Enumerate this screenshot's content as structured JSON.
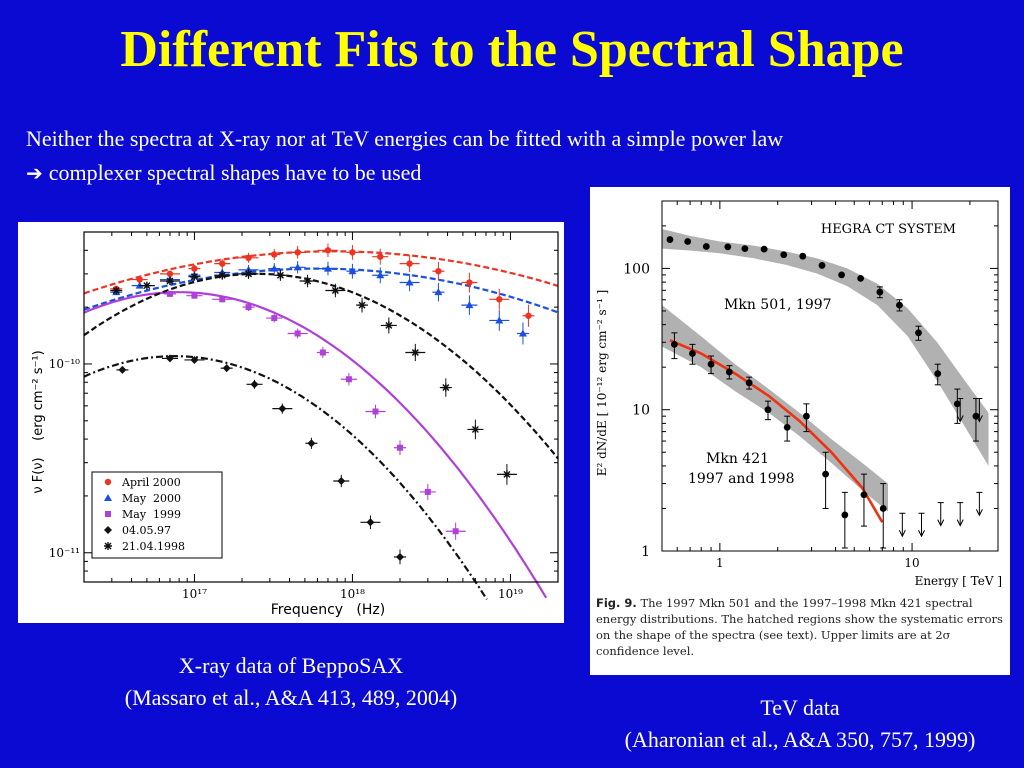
{
  "slide": {
    "title": "Different Fits to the Spectral Shape",
    "intro_line1": "Neither the spectra at X-ray nor at TeV energies can be fitted with a simple power law",
    "intro_arrow": "➔",
    "intro_line2": "complexer spectral shapes have to be used",
    "caption_left_1": "X-ray data of BeppoSAX",
    "caption_left_2": "(Massaro et al., A&A 413, 489, 2004)",
    "caption_right_1": "TeV data",
    "caption_right_2": "(Aharonian et al., A&A 350, 757, 1999)",
    "fig_label": "Fig. 9.",
    "fig_caption": "The 1997 Mkn 501 and the 1997–1998 Mkn 421 spectral energy distributions. The hatched regions show the systematic errors on the shape of the spectra (see text). Upper limits are at 2σ confidence level."
  },
  "chart_data": [
    {
      "type": "scatter",
      "xlabel": "Frequency   (Hz)",
      "ylabel": "ν F(ν)    (erg cm⁻² s⁻¹)",
      "x_scale": "log",
      "y_scale": "log",
      "xlim": [
        2e+16,
        2e+19
      ],
      "ylim": [
        7e-12,
        5e-10
      ],
      "x_tick_labels": [
        "10¹⁷",
        "10¹⁸",
        "10¹⁹"
      ],
      "y_tick_labels": [
        "10⁻¹⁰",
        "10⁻¹¹"
      ],
      "legend_position": "bottom-left",
      "series": [
        {
          "name": "April 2000",
          "marker": "circle",
          "color": "#ee3322",
          "fit": "dashed",
          "fit_params": {
            "peak_hz": 7.5e+17,
            "peak_flux": 3.95e-10,
            "b": 0.09
          },
          "x": [
            3.2e+16,
            4.5e+16,
            7e+16,
            1e+17,
            1.5e+17,
            2.2e+17,
            3.2e+17,
            4.5e+17,
            7e+17,
            1e+18,
            1.5e+18,
            2.3e+18,
            3.5e+18,
            5.5e+18,
            8.5e+18,
            1.3e+19
          ],
          "y": [
            2.5e-10,
            2.8e-10,
            3e-10,
            3.2e-10,
            3.4e-10,
            3.65e-10,
            3.8e-10,
            3.9e-10,
            4e-10,
            3.9e-10,
            3.7e-10,
            3.4e-10,
            3.1e-10,
            2.7e-10,
            2.2e-10,
            1.8e-10
          ]
        },
        {
          "name": "May  2000",
          "marker": "triangle",
          "color": "#1a4fe0",
          "fit": "dashed",
          "fit_params": {
            "peak_hz": 6e+17,
            "peak_flux": 3.2e-10,
            "b": 0.1
          },
          "x": [
            3.2e+16,
            4.5e+16,
            7e+16,
            1e+17,
            1.5e+17,
            2.2e+17,
            3.2e+17,
            4.5e+17,
            7e+17,
            1e+18,
            1.5e+18,
            2.3e+18,
            3.5e+18,
            5.5e+18,
            8.5e+18,
            1.2e+19
          ],
          "y": [
            2.4e-10,
            2.6e-10,
            2.8e-10,
            2.95e-10,
            3.05e-10,
            3.15e-10,
            3.2e-10,
            3.25e-10,
            3.2e-10,
            3.1e-10,
            2.95e-10,
            2.7e-10,
            2.4e-10,
            2.05e-10,
            1.7e-10,
            1.45e-10
          ]
        },
        {
          "name": "May  1999",
          "marker": "square",
          "color": "#b040d8",
          "fit": "solid",
          "fit_params": {
            "peak_hz": 8e+16,
            "peak_flux": 2.4e-10,
            "b": 0.3
          },
          "x": [
            7e+16,
            1e+17,
            1.5e+17,
            2.2e+17,
            3.2e+17,
            4.5e+17,
            6.5e+17,
            9.5e+17,
            1.4e+18,
            2e+18,
            3e+18,
            4.5e+18
          ],
          "y": [
            2.35e-10,
            2.3e-10,
            2.2e-10,
            2e-10,
            1.75e-10,
            1.45e-10,
            1.15e-10,
            8.3e-11,
            5.6e-11,
            3.6e-11,
            2.1e-11,
            1.3e-11
          ]
        },
        {
          "name": "04.05.97",
          "marker": "diamond",
          "color": "#111111",
          "fit": "dashdot",
          "fit_params": {
            "peak_hz": 7.5e+16,
            "peak_flux": 1.1e-10,
            "b": 0.33
          },
          "x": [
            3.5e+16,
            7e+16,
            1e+17,
            1.6e+17,
            2.4e+17,
            3.6e+17,
            5.5e+17,
            8.5e+17,
            1.3e+18,
            2e+18
          ],
          "y": [
            9.3e-11,
            1.07e-10,
            1.05e-10,
            9.5e-11,
            7.8e-11,
            5.8e-11,
            3.8e-11,
            2.4e-11,
            1.45e-11,
            9.5e-12
          ]
        },
        {
          "name": "21.04.1998",
          "marker": "star",
          "color": "#111111",
          "fit": "dashed",
          "fit_params": {
            "peak_hz": 2.5e+17,
            "peak_flux": 3e-10,
            "b": 0.27
          },
          "x": [
            3.2e+16,
            5e+16,
            7e+16,
            1e+17,
            1.5e+17,
            2.2e+17,
            3.5e+17,
            5.2e+17,
            7.8e+17,
            1.15e+18,
            1.7e+18,
            2.5e+18,
            3.9e+18,
            6e+18,
            9.5e+18
          ],
          "y": [
            2.45e-10,
            2.6e-10,
            2.75e-10,
            2.9e-10,
            2.95e-10,
            3e-10,
            2.95e-10,
            2.75e-10,
            2.45e-10,
            2.05e-10,
            1.6e-10,
            1.15e-10,
            7.5e-11,
            4.5e-11,
            2.6e-11
          ]
        }
      ]
    },
    {
      "type": "scatter",
      "title": "HEGRA CT SYSTEM",
      "xlabel": "Energy [ TeV ]",
      "ylabel": "E² dN/dE [ 10⁻¹² erg cm⁻² s⁻¹ ]",
      "x_scale": "log",
      "y_scale": "log",
      "xlim": [
        0.5,
        28
      ],
      "ylim": [
        1,
        300
      ],
      "x_tick_labels": [
        "1",
        "10"
      ],
      "y_tick_labels": [
        "100",
        "10",
        "1"
      ],
      "annotations": [
        "Mkn 501, 1997",
        "Mkn 421",
        "1997 and 1998"
      ],
      "bands": [
        {
          "lower": [
            [
              0.5,
              138
            ],
            [
              0.7,
              134
            ],
            [
              1.0,
              128
            ],
            [
              1.5,
              118
            ],
            [
              2.2,
              106
            ],
            [
              3.2,
              92
            ],
            [
              4.6,
              75
            ],
            [
              6.6,
              55
            ],
            [
              9.5,
              33
            ],
            [
              13.5,
              16
            ],
            [
              19.5,
              7
            ],
            [
              25,
              4
            ]
          ],
          "upper": [
            [
              0.5,
              190
            ],
            [
              0.7,
              170
            ],
            [
              1.0,
              155
            ],
            [
              1.5,
              145
            ],
            [
              2.2,
              132
            ],
            [
              3.2,
              118
            ],
            [
              4.6,
              100
            ],
            [
              6.6,
              78
            ],
            [
              9.5,
              52
            ],
            [
              13.5,
              30
            ],
            [
              19.5,
              15
            ],
            [
              25,
              9.5
            ]
          ]
        },
        {
          "lower": [
            [
              0.5,
              28
            ],
            [
              0.8,
              20
            ],
            [
              1.2,
              13.5
            ],
            [
              1.8,
              9.5
            ],
            [
              2.6,
              6.5
            ],
            [
              3.8,
              4.2
            ],
            [
              5.5,
              2.7
            ],
            [
              7.5,
              1.9
            ]
          ],
          "upper": [
            [
              0.5,
              55
            ],
            [
              0.8,
              33
            ],
            [
              1.2,
              21
            ],
            [
              1.8,
              14
            ],
            [
              2.6,
              9.5
            ],
            [
              3.8,
              6.2
            ],
            [
              5.5,
              4.2
            ],
            [
              7.5,
              3.0
            ]
          ]
        }
      ],
      "fit_line": [
        [
          0.55,
          31
        ],
        [
          0.8,
          25
        ],
        [
          1.2,
          18
        ],
        [
          1.8,
          12.5
        ],
        [
          2.6,
          8.3
        ],
        [
          3.8,
          5.0
        ],
        [
          5.5,
          2.8
        ],
        [
          7.0,
          1.6
        ]
      ],
      "series": [
        {
          "name": "Mkn 501, 1997",
          "x": [
            0.55,
            0.68,
            0.85,
            1.1,
            1.35,
            1.7,
            2.15,
            2.7,
            3.4,
            4.3,
            5.4,
            6.8,
            8.6,
            10.8,
            13.6,
            17.2,
            21.5
          ],
          "y": [
            160,
            155,
            143,
            142,
            138,
            137,
            125,
            122,
            105,
            90,
            85,
            68,
            55,
            35,
            18,
            11,
            9
          ],
          "err": [
            0,
            0,
            0,
            0,
            0,
            0,
            0,
            0,
            0,
            0,
            0,
            6,
            5,
            4,
            3,
            3,
            3
          ]
        },
        {
          "name": "Mkn 421 1997 and 1998",
          "x": [
            0.58,
            0.72,
            0.9,
            1.12,
            1.42,
            1.78,
            2.24,
            2.82,
            3.55,
            4.47,
            5.62,
            7.08
          ],
          "y": [
            29,
            25,
            21,
            18.5,
            15.5,
            10,
            7.5,
            9,
            3.5,
            1.8,
            2.5,
            2
          ],
          "err": [
            6,
            4,
            3,
            2,
            1.5,
            1.5,
            1.5,
            2,
            1.5,
            0.8,
            1.0,
            1.0
          ]
        }
      ],
      "upper_limits": {
        "x": [
          8.9,
          11.2,
          14.1,
          17.8,
          22.4
        ],
        "y": [
          1.85,
          1.85,
          2.2,
          2.2,
          2.6
        ]
      },
      "upper_limits_high": {
        "x": [
          17.8,
          22.4
        ],
        "y": [
          12,
          12
        ]
      }
    }
  ]
}
